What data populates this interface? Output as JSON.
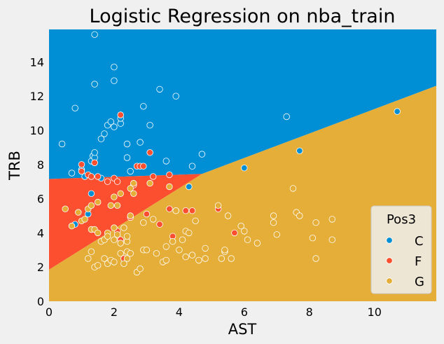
{
  "chart_data": {
    "type": "scatter",
    "title": "Logistic Regression on nba_train",
    "xlabel": "AST",
    "ylabel": "TRB",
    "xlim": [
      0,
      11.9
    ],
    "ylim": [
      0,
      15.9
    ],
    "xticks": [
      "0",
      "2",
      "4",
      "6",
      "8",
      "10"
    ],
    "xtick_values": [
      0,
      2,
      4,
      6,
      8,
      10
    ],
    "yticks": [
      "0",
      "2",
      "4",
      "6",
      "8",
      "10",
      "12",
      "14"
    ],
    "ytick_values": [
      0,
      2,
      4,
      6,
      8,
      10,
      12,
      14
    ],
    "grid": false,
    "legend": {
      "title": "Pos3",
      "placement": "bottom-right",
      "entries": [
        {
          "label": "C",
          "color": "#008fd5"
        },
        {
          "label": "F",
          "color": "#fc4f30"
        },
        {
          "label": "G",
          "color": "#e5ae38"
        }
      ]
    },
    "decision_regions": {
      "C": {
        "color": "#008fd5",
        "polygon": [
          [
            0,
            7.15
          ],
          [
            4.7,
            7.45
          ],
          [
            11.9,
            12.6
          ],
          [
            11.9,
            15.9
          ],
          [
            0,
            15.9
          ]
        ]
      },
      "F": {
        "color": "#fc4f30",
        "polygon": [
          [
            0,
            1.85
          ],
          [
            4.7,
            7.45
          ],
          [
            0,
            7.15
          ]
        ]
      },
      "G": {
        "color": "#e5ae38",
        "polygon": [
          [
            0,
            0
          ],
          [
            11.9,
            0
          ],
          [
            11.9,
            12.6
          ],
          [
            4.7,
            7.45
          ],
          [
            0,
            1.85
          ]
        ]
      }
    },
    "series": [
      {
        "name": "C",
        "color": "#008fd5",
        "points": [
          [
            0.4,
            9.2
          ],
          [
            0.7,
            7.5
          ],
          [
            0.8,
            11.3
          ],
          [
            1.0,
            7.7
          ],
          [
            1.1,
            7.3
          ],
          [
            1.2,
            5.1
          ],
          [
            1.3,
            8.2
          ],
          [
            1.35,
            8.5
          ],
          [
            1.4,
            8.4
          ],
          [
            1.4,
            8.7
          ],
          [
            1.4,
            8.1
          ],
          [
            1.4,
            12.7
          ],
          [
            1.4,
            15.6
          ],
          [
            1.6,
            9.5
          ],
          [
            1.6,
            7.2
          ],
          [
            1.7,
            9.8
          ],
          [
            1.8,
            10.3
          ],
          [
            1.9,
            10.5
          ],
          [
            2.0,
            10.2
          ],
          [
            2.0,
            12.9
          ],
          [
            2.0,
            13.7
          ],
          [
            2.2,
            10.4
          ],
          [
            2.2,
            10.7
          ],
          [
            2.4,
            9.2
          ],
          [
            2.4,
            8.4
          ],
          [
            2.5,
            7.6
          ],
          [
            2.8,
            9.3
          ],
          [
            2.9,
            11.4
          ],
          [
            3.1,
            10.3
          ],
          [
            3.4,
            12.4
          ],
          [
            3.6,
            8.2
          ],
          [
            3.9,
            12.0
          ],
          [
            4.4,
            7.9
          ],
          [
            4.7,
            8.6
          ],
          [
            7.3,
            10.8
          ],
          [
            7.7,
            8.8
          ],
          [
            10.7,
            11.1
          ],
          [
            6.0,
            7.8
          ],
          [
            4.3,
            6.7
          ],
          [
            1.3,
            6.3
          ],
          [
            0.8,
            4.5
          ]
        ]
      },
      {
        "name": "F",
        "color": "#fc4f30",
        "points": [
          [
            1.0,
            7.6
          ],
          [
            1.0,
            8.0
          ],
          [
            1.2,
            7.4
          ],
          [
            1.3,
            7.3
          ],
          [
            1.4,
            8.1
          ],
          [
            1.5,
            7.3
          ],
          [
            1.8,
            7.0
          ],
          [
            2.0,
            7.2
          ],
          [
            2.1,
            7.0
          ],
          [
            2.1,
            4.1
          ],
          [
            2.2,
            3.6
          ],
          [
            2.2,
            10.9
          ],
          [
            2.3,
            2.5
          ],
          [
            2.5,
            4.9
          ],
          [
            2.6,
            6.8
          ],
          [
            2.7,
            7.9
          ],
          [
            2.8,
            7.9
          ],
          [
            2.9,
            7.9
          ],
          [
            3.0,
            5.1
          ],
          [
            3.1,
            8.7
          ],
          [
            3.2,
            7.3
          ],
          [
            3.4,
            4.5
          ],
          [
            3.7,
            5.4
          ],
          [
            3.8,
            3.8
          ],
          [
            3.9,
            5.3
          ],
          [
            4.2,
            5.3
          ],
          [
            4.4,
            5.3
          ],
          [
            5.2,
            5.4
          ],
          [
            5.7,
            4.0
          ],
          [
            3.7,
            7.4
          ]
        ]
      },
      {
        "name": "G",
        "color": "#e5ae38",
        "points": [
          [
            0.5,
            5.4
          ],
          [
            0.7,
            4.4
          ],
          [
            0.9,
            5.2
          ],
          [
            1.0,
            4.7
          ],
          [
            1.1,
            4.8
          ],
          [
            1.2,
            5.4
          ],
          [
            1.2,
            2.5
          ],
          [
            1.3,
            4.2
          ],
          [
            1.3,
            2.9
          ],
          [
            1.3,
            5.6
          ],
          [
            1.4,
            2.0
          ],
          [
            1.4,
            4.2
          ],
          [
            1.5,
            2.1
          ],
          [
            1.5,
            4.0
          ],
          [
            1.5,
            5.8
          ],
          [
            1.6,
            3.5
          ],
          [
            1.7,
            2.5
          ],
          [
            1.7,
            3.6
          ],
          [
            1.8,
            4.0
          ],
          [
            1.8,
            2.2
          ],
          [
            1.8,
            3.8
          ],
          [
            1.9,
            2.4
          ],
          [
            1.9,
            5.6
          ],
          [
            2.0,
            2.3
          ],
          [
            2.0,
            3.6
          ],
          [
            2.0,
            4.3
          ],
          [
            2.0,
            6.1
          ],
          [
            2.1,
            3.9
          ],
          [
            2.1,
            5.6
          ],
          [
            2.2,
            2.8
          ],
          [
            2.2,
            3.4
          ],
          [
            2.2,
            6.3
          ],
          [
            2.3,
            4.3
          ],
          [
            2.3,
            2.2
          ],
          [
            2.4,
            2.5
          ],
          [
            2.4,
            2.9
          ],
          [
            2.4,
            3.5
          ],
          [
            2.4,
            3.8
          ],
          [
            2.5,
            2.8
          ],
          [
            2.5,
            5.0
          ],
          [
            2.5,
            6.6
          ],
          [
            2.6,
            6.3
          ],
          [
            2.6,
            6.9
          ],
          [
            2.7,
            1.7
          ],
          [
            2.8,
            1.9
          ],
          [
            2.9,
            3.0
          ],
          [
            2.9,
            4.6
          ],
          [
            3.0,
            3.0
          ],
          [
            3.1,
            6.9
          ],
          [
            3.2,
            4.8
          ],
          [
            3.3,
            2.8
          ],
          [
            3.5,
            2.3
          ],
          [
            3.6,
            2.4
          ],
          [
            3.6,
            3.2
          ],
          [
            3.7,
            6.7
          ],
          [
            3.8,
            3.5
          ],
          [
            3.9,
            5.3
          ],
          [
            4.0,
            3.0
          ],
          [
            4.1,
            3.6
          ],
          [
            4.2,
            2.6
          ],
          [
            4.2,
            4.1
          ],
          [
            4.3,
            4.0
          ],
          [
            4.4,
            2.7
          ],
          [
            4.5,
            4.7
          ],
          [
            4.6,
            2.4
          ],
          [
            4.8,
            2.5
          ],
          [
            4.8,
            3.1
          ],
          [
            5.2,
            5.6
          ],
          [
            5.3,
            2.5
          ],
          [
            5.4,
            2.9
          ],
          [
            5.4,
            3.0
          ],
          [
            5.5,
            5.0
          ],
          [
            5.6,
            2.5
          ],
          [
            5.9,
            4.4
          ],
          [
            6.0,
            4.1
          ],
          [
            6.1,
            3.6
          ],
          [
            6.4,
            3.4
          ],
          [
            6.9,
            5.0
          ],
          [
            6.9,
            4.6
          ],
          [
            7.0,
            3.9
          ],
          [
            7.5,
            6.6
          ],
          [
            7.6,
            5.2
          ],
          [
            7.7,
            5.0
          ],
          [
            8.1,
            3.7
          ],
          [
            8.2,
            2.5
          ],
          [
            8.2,
            4.6
          ],
          [
            8.7,
            3.6
          ],
          [
            8.7,
            4.8
          ]
        ]
      }
    ]
  }
}
